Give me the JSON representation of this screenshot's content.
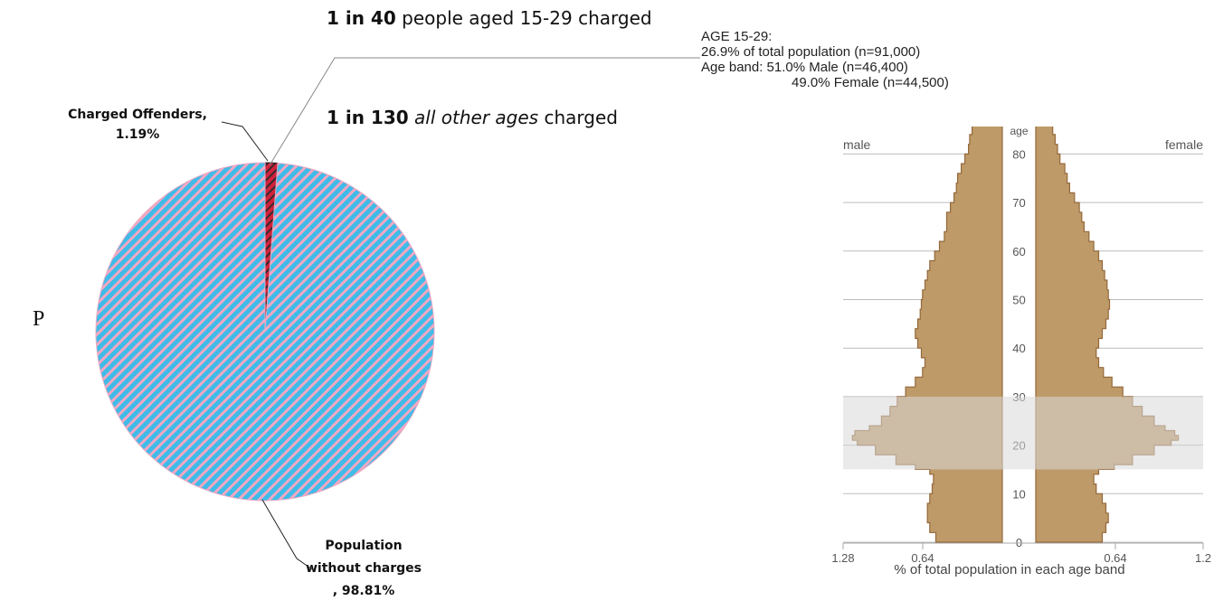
{
  "headlines": {
    "young_prefix": "1 in 40",
    "young_suffix": " people aged 15-29 charged",
    "other_prefix": "1 in 130",
    "other_italic": "all other ages",
    "other_suffix": " charged"
  },
  "stray_glyph": "P",
  "annotation": {
    "line1": "AGE 15-29:",
    "line2": "26.9% of total population (n=91,000)",
    "line3": "Age band: 51.0% Male (n=46,400)",
    "line4": "49.0% Female (n=44,500)"
  },
  "pie_labels": {
    "charged_line1": "Charged Offenders,",
    "charged_line2": "1.19%",
    "pop_line1": "Population",
    "pop_line2": "without charges",
    "pop_line3": ", 98.81%"
  },
  "colors": {
    "pie_blue": "#3fbbe8",
    "pie_pink": "#f3a7c2",
    "pie_red": "#d3213b",
    "pyramid_fill": "#be9a68",
    "pyramid_stroke": "#94683a",
    "highlight_band": "#d8d8d8"
  },
  "chart_data": [
    {
      "type": "pie",
      "labels": [
        "Charged Offenders",
        "Population without charges"
      ],
      "values": [
        1.19,
        98.81
      ],
      "unit": "%"
    },
    {
      "type": "area",
      "y_axis_label": "age",
      "x_axis_label": "% of total population in each age band",
      "left_label": "male",
      "right_label": "female",
      "age_ticks": [
        0,
        10,
        20,
        30,
        40,
        50,
        60,
        70,
        80
      ],
      "x_ticks_left": [
        "1.28",
        "0.64"
      ],
      "x_ticks_right": [
        "0.64",
        "1.2"
      ],
      "x_range": [
        0,
        1.28
      ],
      "highlight_age_range": [
        15,
        30
      ],
      "ages": [
        0,
        2,
        4,
        6,
        8,
        10,
        12,
        14,
        15,
        16,
        18,
        20,
        21,
        22,
        23,
        24,
        26,
        28,
        30,
        32,
        34,
        36,
        38,
        40,
        42,
        44,
        46,
        48,
        50,
        52,
        54,
        56,
        58,
        60,
        62,
        64,
        66,
        68,
        70,
        72,
        74,
        76,
        78,
        80,
        82,
        84
      ],
      "male": [
        0.55,
        0.6,
        0.62,
        0.62,
        0.6,
        0.58,
        0.57,
        0.6,
        0.72,
        0.88,
        1.05,
        1.2,
        1.24,
        1.22,
        1.1,
        1.0,
        0.93,
        0.87,
        0.8,
        0.72,
        0.66,
        0.64,
        0.67,
        0.7,
        0.72,
        0.7,
        0.68,
        0.67,
        0.66,
        0.64,
        0.62,
        0.6,
        0.56,
        0.52,
        0.48,
        0.46,
        0.46,
        0.43,
        0.4,
        0.38,
        0.37,
        0.34,
        0.31,
        0.28,
        0.27,
        0.25
      ],
      "female": [
        0.55,
        0.58,
        0.6,
        0.58,
        0.55,
        0.5,
        0.48,
        0.52,
        0.65,
        0.8,
        0.98,
        1.12,
        1.18,
        1.15,
        1.07,
        0.98,
        0.88,
        0.8,
        0.72,
        0.63,
        0.56,
        0.52,
        0.5,
        0.52,
        0.55,
        0.58,
        0.6,
        0.61,
        0.6,
        0.59,
        0.57,
        0.55,
        0.52,
        0.48,
        0.44,
        0.4,
        0.38,
        0.36,
        0.32,
        0.28,
        0.26,
        0.24,
        0.2,
        0.18,
        0.16,
        0.14
      ]
    }
  ]
}
